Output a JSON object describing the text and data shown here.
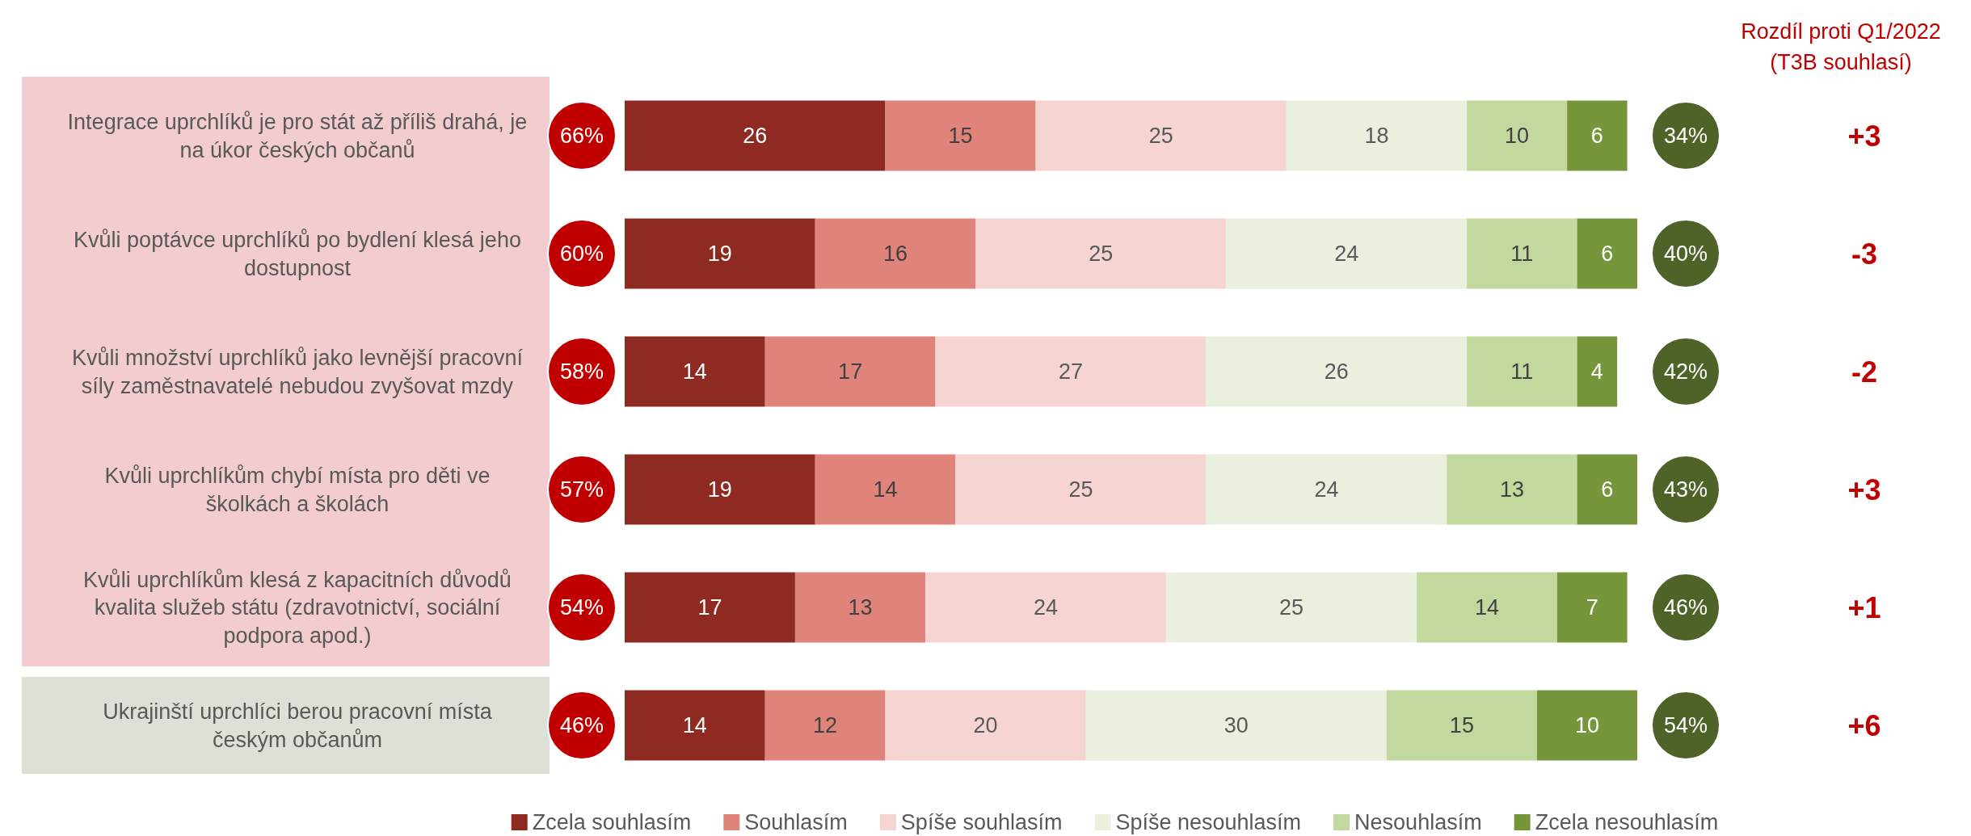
{
  "chart_data": {
    "type": "bar",
    "orientation": "horizontal",
    "stacked": true,
    "data_labels": true,
    "legend": "bottom",
    "tick_labels": "y",
    "xlim": [
      0,
      101
    ],
    "categories": [
      "Integrace uprchlíků je pro stát až příliš drahá, je na úkor českých občanů",
      "Kvůli poptávce uprchlíků po bydlení klesá jeho dostupnost",
      "Kvůli množství uprchlíků jako levnější pracovní síly zaměstnavatelé nebudou zvyšovat mzdy",
      "Kvůli uprchlíkům chybí místa pro děti ve školkách a školách",
      "Kvůli uprchlíkům klesá z kapacitních důvodů kvalita služeb státu (zdravotnictví, sociální podpora apod.)",
      "Ukrajinští uprchlíci berou pracovní místa českým občanům"
    ],
    "series": [
      {
        "name": "Zcela souhlasím",
        "color": "#8e2a22",
        "values": [
          26,
          19,
          14,
          19,
          17,
          14
        ]
      },
      {
        "name": "Souhlasím",
        "color": "#e0837a",
        "values": [
          15,
          16,
          17,
          14,
          13,
          12
        ]
      },
      {
        "name": "Spíše souhlasím",
        "color": "#f5d4d2",
        "values": [
          25,
          25,
          27,
          25,
          24,
          20
        ]
      },
      {
        "name": "Spíše nesouhlasím",
        "color": "#eaf0de",
        "values": [
          18,
          24,
          26,
          24,
          25,
          30
        ]
      },
      {
        "name": "Nesouhlasím",
        "color": "#c3d89e",
        "values": [
          10,
          11,
          11,
          13,
          14,
          15
        ]
      },
      {
        "name": "Zcela nesouhlasím",
        "color": "#76963c",
        "values": [
          6,
          6,
          4,
          6,
          7,
          10
        ]
      }
    ],
    "annotations": [
      "Rozdíl proti Q1/2022\n(T3B souhlasí)",
      "66%",
      "34%",
      "+3",
      "60%",
      "40%",
      "-3",
      "58%",
      "42%",
      "-2",
      "57%",
      "43%",
      "+3",
      "54%",
      "46%",
      "+1",
      "46%",
      "54%",
      "+6"
    ]
  }
}
